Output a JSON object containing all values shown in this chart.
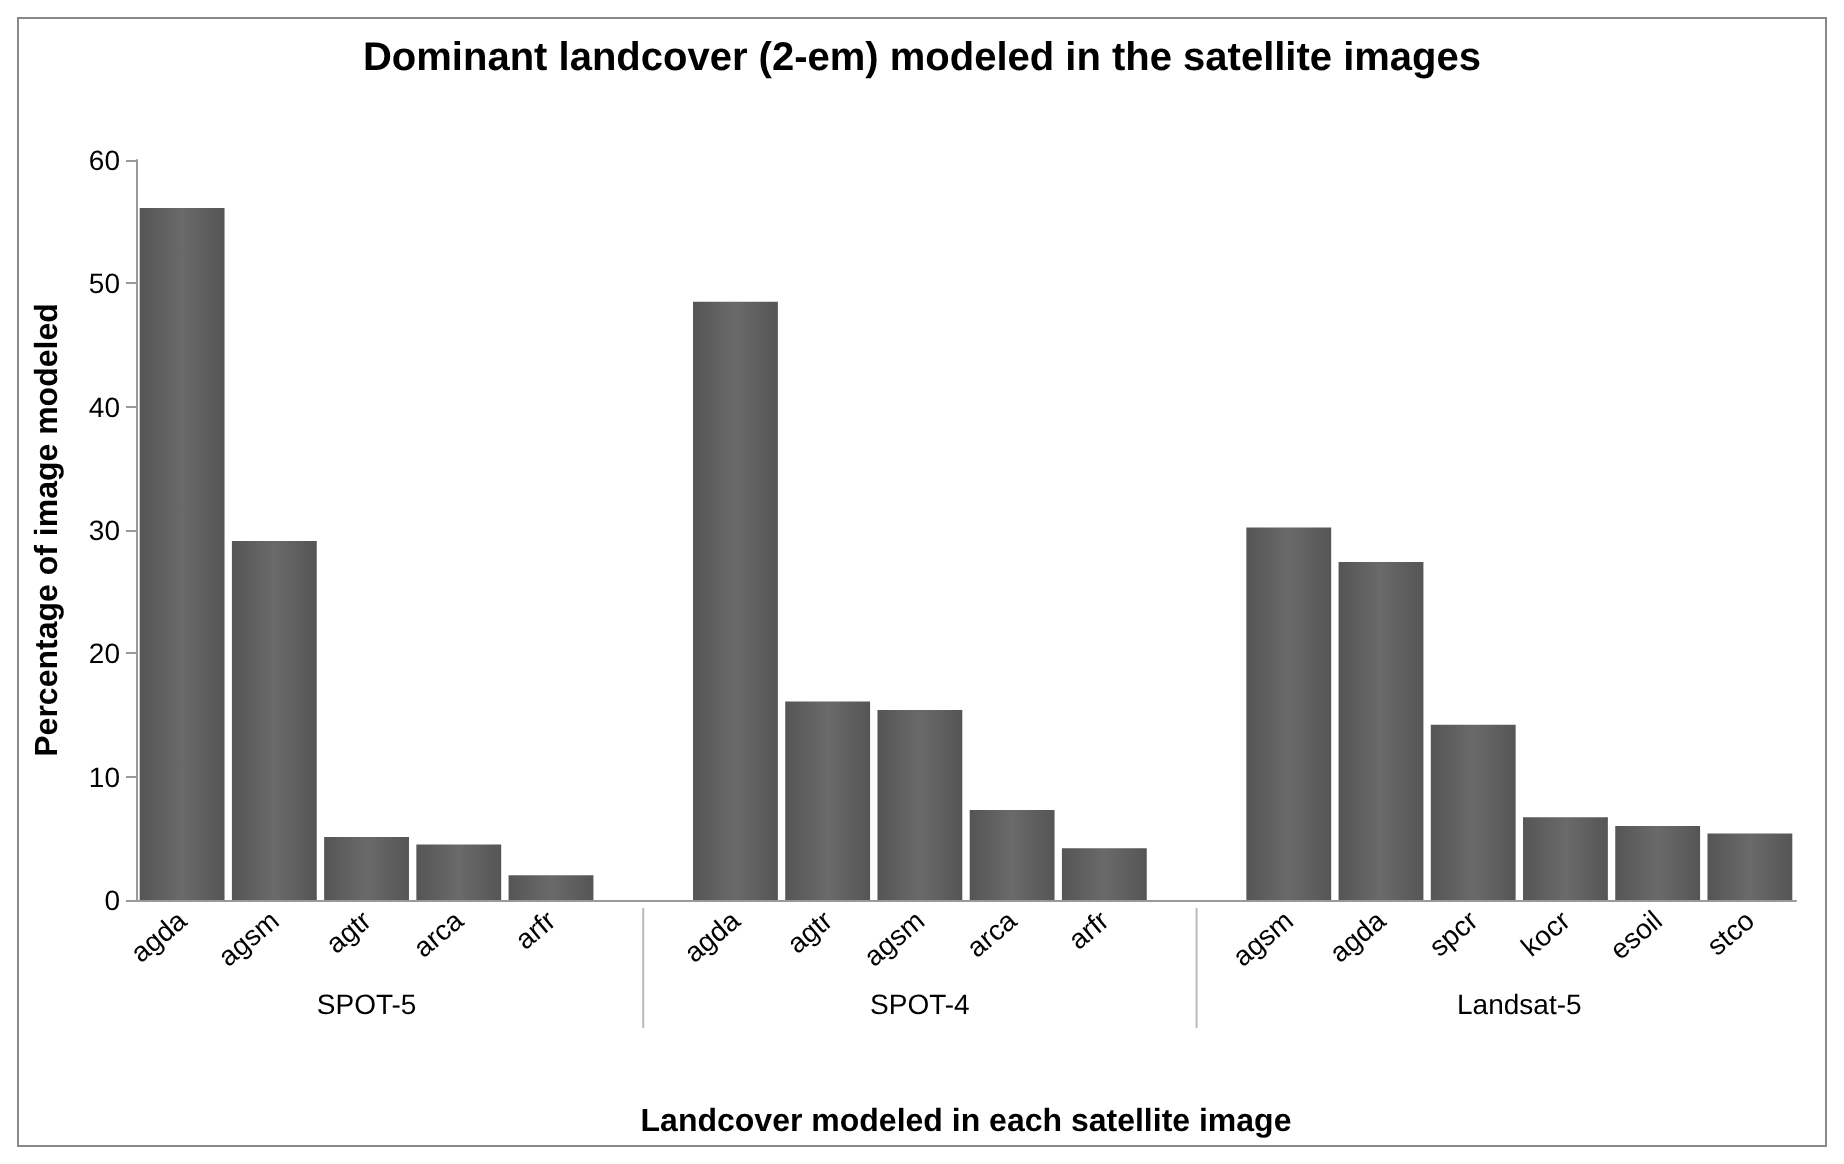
{
  "chart_data": {
    "type": "bar",
    "title": "Dominant landcover (2-em) modeled in the satellite images",
    "xlabel": "Landcover modeled in each satellite image",
    "ylabel": "Percentage of image modeled",
    "categories": [
      "agda",
      "agsm",
      "agtr",
      "arca",
      "arfr",
      null,
      "agda",
      "agtr",
      "agsm",
      "arca",
      "arfr",
      null,
      "agsm",
      "agda",
      "spcr",
      "kocr",
      "esoil",
      "stco"
    ],
    "values": [
      56.1,
      29.1,
      5.1,
      4.5,
      2.0,
      null,
      48.5,
      16.1,
      15.4,
      7.3,
      4.2,
      null,
      30.2,
      27.4,
      14.2,
      6.7,
      6.0,
      5.4
    ],
    "color": "#555555",
    "annotations": [
      "SPOT-5",
      "SPOT-4",
      "Landsat-5"
    ],
    "ylim": [
      0,
      60
    ],
    "yticks": [
      0,
      10,
      20,
      30,
      40,
      50,
      60
    ],
    "grid": false
  }
}
